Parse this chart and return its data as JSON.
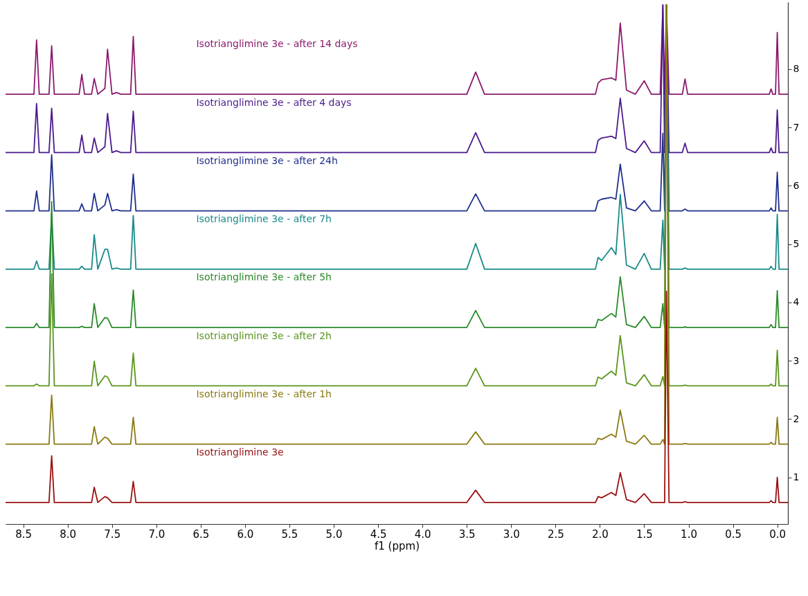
{
  "chart_data": {
    "type": "line",
    "xlabel": "f1 (ppm)",
    "xlim": [
      8.7,
      -0.12
    ],
    "xticks": [
      8.5,
      {
        "value": 8,
        "label": "8.0"
      },
      7.5,
      {
        "value": 7,
        "label": "7.0"
      },
      6.5,
      {
        "value": 6,
        "label": "6.0"
      },
      5.5,
      {
        "value": 5,
        "label": "5.0"
      },
      4.5,
      {
        "value": 4,
        "label": "4.0"
      },
      3.5,
      {
        "value": 3,
        "label": "3.0"
      },
      2.5,
      {
        "value": 2,
        "label": "2.0"
      },
      1.5,
      {
        "value": 1,
        "label": "1.0"
      },
      0.5,
      {
        "value": 0,
        "label": "0.0"
      }
    ],
    "ylim": [
      0.2,
      9.15
    ],
    "yticks": [
      1,
      2,
      3,
      4,
      5,
      6,
      7,
      8
    ],
    "grid": false,
    "x": [
      8.7,
      8.38,
      8.35,
      8.32,
      8.21,
      8.18,
      8.15,
      7.87,
      7.84,
      7.81,
      7.73,
      7.7,
      7.66,
      7.58,
      7.55,
      7.5,
      7.45,
      7.4,
      7.29,
      7.26,
      7.23,
      3.5,
      3.4,
      3.3,
      2.05,
      2.02,
      1.98,
      1.87,
      1.82,
      1.77,
      1.7,
      1.6,
      1.5,
      1.42,
      1.32,
      1.29,
      1.27,
      1.25,
      1.22,
      1.07,
      1.04,
      1.01,
      0.09,
      0.07,
      0.05,
      0.02,
      0.0,
      -0.02,
      -0.12
    ],
    "series": [
      {
        "name": "Isotrianglimine 3e - after 14 days",
        "color": "#8b1a6e",
        "values": [
          7.57,
          7.57,
          8.5,
          7.57,
          7.57,
          8.4,
          7.57,
          7.57,
          7.91,
          7.57,
          7.57,
          7.84,
          7.57,
          7.67,
          8.34,
          7.57,
          7.6,
          7.57,
          7.57,
          8.56,
          7.57,
          7.57,
          7.95,
          7.57,
          7.57,
          7.76,
          7.82,
          7.85,
          7.81,
          8.79,
          7.64,
          7.57,
          7.8,
          7.57,
          7.57,
          9.1,
          7.57,
          9.1,
          7.57,
          7.57,
          7.83,
          7.57,
          7.57,
          7.66,
          7.57,
          7.57,
          8.63,
          7.57,
          7.57
        ]
      },
      {
        "name": "Isotrianglimine 3e - after 4 days",
        "color": "#4b1a8c",
        "values": [
          6.57,
          6.57,
          7.41,
          6.57,
          6.57,
          7.33,
          6.57,
          6.57,
          6.87,
          6.57,
          6.57,
          6.82,
          6.57,
          6.67,
          7.24,
          6.57,
          6.6,
          6.57,
          6.57,
          7.28,
          6.57,
          6.57,
          6.91,
          6.57,
          6.57,
          6.78,
          6.82,
          6.85,
          6.81,
          7.5,
          6.64,
          6.57,
          6.77,
          6.57,
          6.57,
          9.1,
          6.57,
          9.1,
          6.57,
          6.57,
          6.73,
          6.57,
          6.57,
          6.65,
          6.57,
          6.57,
          7.3,
          6.57,
          6.57
        ]
      },
      {
        "name": "Isotrianglimine 3e - after 24h",
        "color": "#1f2f8c",
        "values": [
          5.57,
          5.57,
          5.91,
          5.57,
          5.57,
          6.53,
          5.57,
          5.57,
          5.69,
          5.57,
          5.57,
          5.87,
          5.57,
          5.67,
          5.87,
          5.57,
          5.59,
          5.57,
          5.57,
          6.2,
          5.57,
          5.57,
          5.86,
          5.57,
          5.57,
          5.74,
          5.77,
          5.8,
          5.77,
          6.37,
          5.62,
          5.57,
          5.74,
          5.57,
          5.57,
          6.9,
          5.57,
          9.1,
          5.57,
          5.57,
          5.6,
          5.57,
          5.57,
          5.62,
          5.57,
          5.57,
          6.23,
          5.57,
          5.57
        ]
      },
      {
        "name": "Isotrianglimine 3e - after 7h",
        "color": "#1a8a8a",
        "values": [
          4.57,
          4.57,
          4.71,
          4.57,
          4.57,
          5.52,
          4.57,
          4.57,
          4.62,
          4.57,
          4.57,
          5.16,
          4.57,
          4.91,
          4.91,
          4.57,
          4.59,
          4.57,
          4.57,
          5.49,
          4.57,
          4.57,
          5.01,
          4.57,
          4.57,
          4.77,
          4.72,
          4.94,
          4.82,
          5.85,
          4.64,
          4.57,
          4.84,
          4.57,
          4.57,
          5.41,
          4.57,
          9.1,
          4.57,
          4.57,
          4.59,
          4.57,
          4.57,
          4.62,
          4.57,
          4.57,
          5.51,
          4.57,
          4.57
        ]
      },
      {
        "name": "Isotrianglimine 3e - after 5h",
        "color": "#2a8a2a",
        "values": [
          3.57,
          3.57,
          3.64,
          3.57,
          3.57,
          5.73,
          3.57,
          3.57,
          3.59,
          3.57,
          3.57,
          3.98,
          3.57,
          3.74,
          3.73,
          3.57,
          3.57,
          3.57,
          3.57,
          4.21,
          3.57,
          3.57,
          3.86,
          3.57,
          3.57,
          3.71,
          3.69,
          3.81,
          3.75,
          4.44,
          3.62,
          3.57,
          3.76,
          3.57,
          3.57,
          3.98,
          3.57,
          9.1,
          3.57,
          3.57,
          3.58,
          3.57,
          3.57,
          3.62,
          3.57,
          3.57,
          4.2,
          3.57,
          3.57
        ]
      },
      {
        "name": "Isotrianglimine 3e - after 2h",
        "color": "#5a961e",
        "values": [
          2.57,
          2.57,
          2.6,
          2.57,
          2.57,
          4.49,
          2.57,
          2.57,
          2.57,
          2.57,
          2.57,
          2.99,
          2.57,
          2.74,
          2.72,
          2.57,
          2.57,
          2.57,
          2.57,
          3.13,
          2.57,
          2.57,
          2.87,
          2.57,
          2.57,
          2.72,
          2.69,
          2.82,
          2.75,
          3.43,
          2.62,
          2.57,
          2.76,
          2.57,
          2.57,
          2.73,
          2.57,
          9.1,
          2.57,
          2.57,
          2.58,
          2.57,
          2.57,
          2.6,
          2.57,
          2.57,
          3.18,
          2.57,
          2.57
        ]
      },
      {
        "name": "Isotrianglimine 3e - after 1h",
        "color": "#8a7a12",
        "values": [
          1.57,
          1.57,
          1.57,
          1.57,
          1.57,
          2.41,
          1.57,
          1.57,
          1.57,
          1.57,
          1.57,
          1.87,
          1.57,
          1.69,
          1.67,
          1.57,
          1.57,
          1.57,
          1.57,
          2.03,
          1.57,
          1.57,
          1.78,
          1.57,
          1.57,
          1.67,
          1.65,
          1.74,
          1.69,
          2.15,
          1.62,
          1.57,
          1.72,
          1.57,
          1.57,
          1.65,
          1.57,
          9.1,
          1.57,
          1.57,
          1.58,
          1.57,
          1.57,
          1.6,
          1.57,
          1.57,
          2.03,
          1.57,
          1.57
        ]
      },
      {
        "name": "Isotrianglimine 3e",
        "color": "#9a0f0f",
        "values": [
          0.57,
          0.57,
          0.57,
          0.57,
          0.57,
          1.37,
          0.57,
          0.57,
          0.57,
          0.57,
          0.57,
          0.83,
          0.57,
          0.67,
          0.65,
          0.57,
          0.57,
          0.57,
          0.57,
          0.93,
          0.57,
          0.57,
          0.78,
          0.57,
          0.57,
          0.67,
          0.65,
          0.74,
          0.69,
          1.08,
          0.62,
          0.57,
          0.72,
          0.57,
          0.57,
          0.57,
          0.57,
          4.19,
          0.57,
          0.57,
          0.58,
          0.57,
          0.57,
          0.6,
          0.57,
          0.57,
          1.0,
          0.57,
          0.57
        ]
      }
    ]
  }
}
